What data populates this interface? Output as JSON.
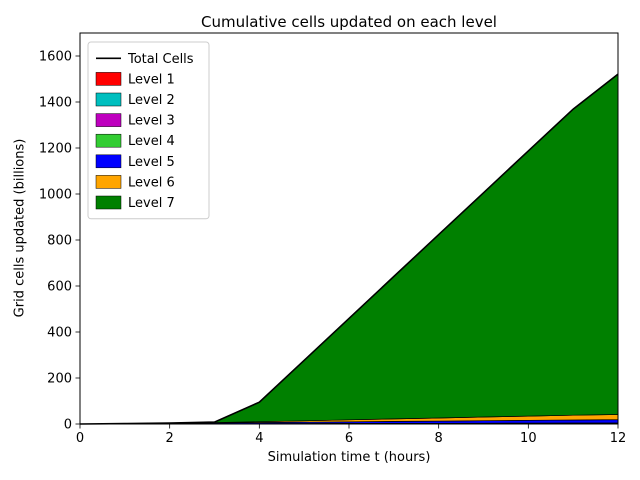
{
  "figure": {
    "title": "Cumulative cells updated on each level",
    "xlabel": "Simulation time t (hours)",
    "ylabel": "Grid cells updated (billions)"
  },
  "chart_data": {
    "type": "area",
    "stacked": true,
    "title": "Cumulative cells updated on each level",
    "xlabel": "Simulation time t (hours)",
    "ylabel": "Grid cells updated (billions)",
    "xlim": [
      0,
      12
    ],
    "ylim": [
      0,
      1700
    ],
    "xticks": [
      0,
      2,
      4,
      6,
      8,
      10,
      12
    ],
    "yticks": [
      0,
      200,
      400,
      600,
      800,
      1000,
      1200,
      1400,
      1600
    ],
    "legend_position": "upper left",
    "x": [
      0,
      1,
      2,
      3,
      4,
      5,
      6,
      7,
      8,
      9,
      10,
      11,
      12
    ],
    "total_line": {
      "name": "Total Cells",
      "color": "#000000"
    },
    "series": [
      {
        "name": "Level 1",
        "color": "#ff0000",
        "values": [
          0,
          0.02,
          0.05,
          0.07,
          0.1,
          0.12,
          0.15,
          0.17,
          0.2,
          0.22,
          0.25,
          0.27,
          0.3
        ]
      },
      {
        "name": "Level 2",
        "color": "#00bfbf",
        "values": [
          0,
          0.04,
          0.08,
          0.13,
          0.17,
          0.21,
          0.25,
          0.29,
          0.33,
          0.38,
          0.42,
          0.46,
          0.5
        ]
      },
      {
        "name": "Level 3",
        "color": "#bf00bf",
        "values": [
          0,
          0.08,
          0.17,
          0.25,
          0.33,
          0.42,
          0.5,
          0.58,
          0.67,
          0.75,
          0.83,
          0.92,
          1.0
        ]
      },
      {
        "name": "Level 4",
        "color": "#32cd32",
        "values": [
          0,
          0.25,
          0.5,
          0.75,
          1.0,
          1.25,
          1.5,
          1.75,
          2.0,
          2.25,
          2.5,
          2.75,
          3.0
        ]
      },
      {
        "name": "Level 5",
        "color": "#0000ff",
        "values": [
          0,
          1.2,
          2.4,
          3.6,
          4.8,
          6.0,
          7.2,
          8.4,
          9.6,
          10.8,
          12.0,
          13.2,
          14.4
        ]
      },
      {
        "name": "Level 6",
        "color": "#ffa500",
        "values": [
          0,
          0,
          0.5,
          1.5,
          3.5,
          6,
          8.5,
          11,
          13.5,
          16,
          18.5,
          20.5,
          22
        ]
      },
      {
        "name": "Level 7",
        "color": "#008000",
        "values": [
          0,
          0,
          0,
          2,
          85,
          263,
          441,
          619,
          797,
          975,
          1153,
          1331,
          1480
        ]
      }
    ]
  }
}
